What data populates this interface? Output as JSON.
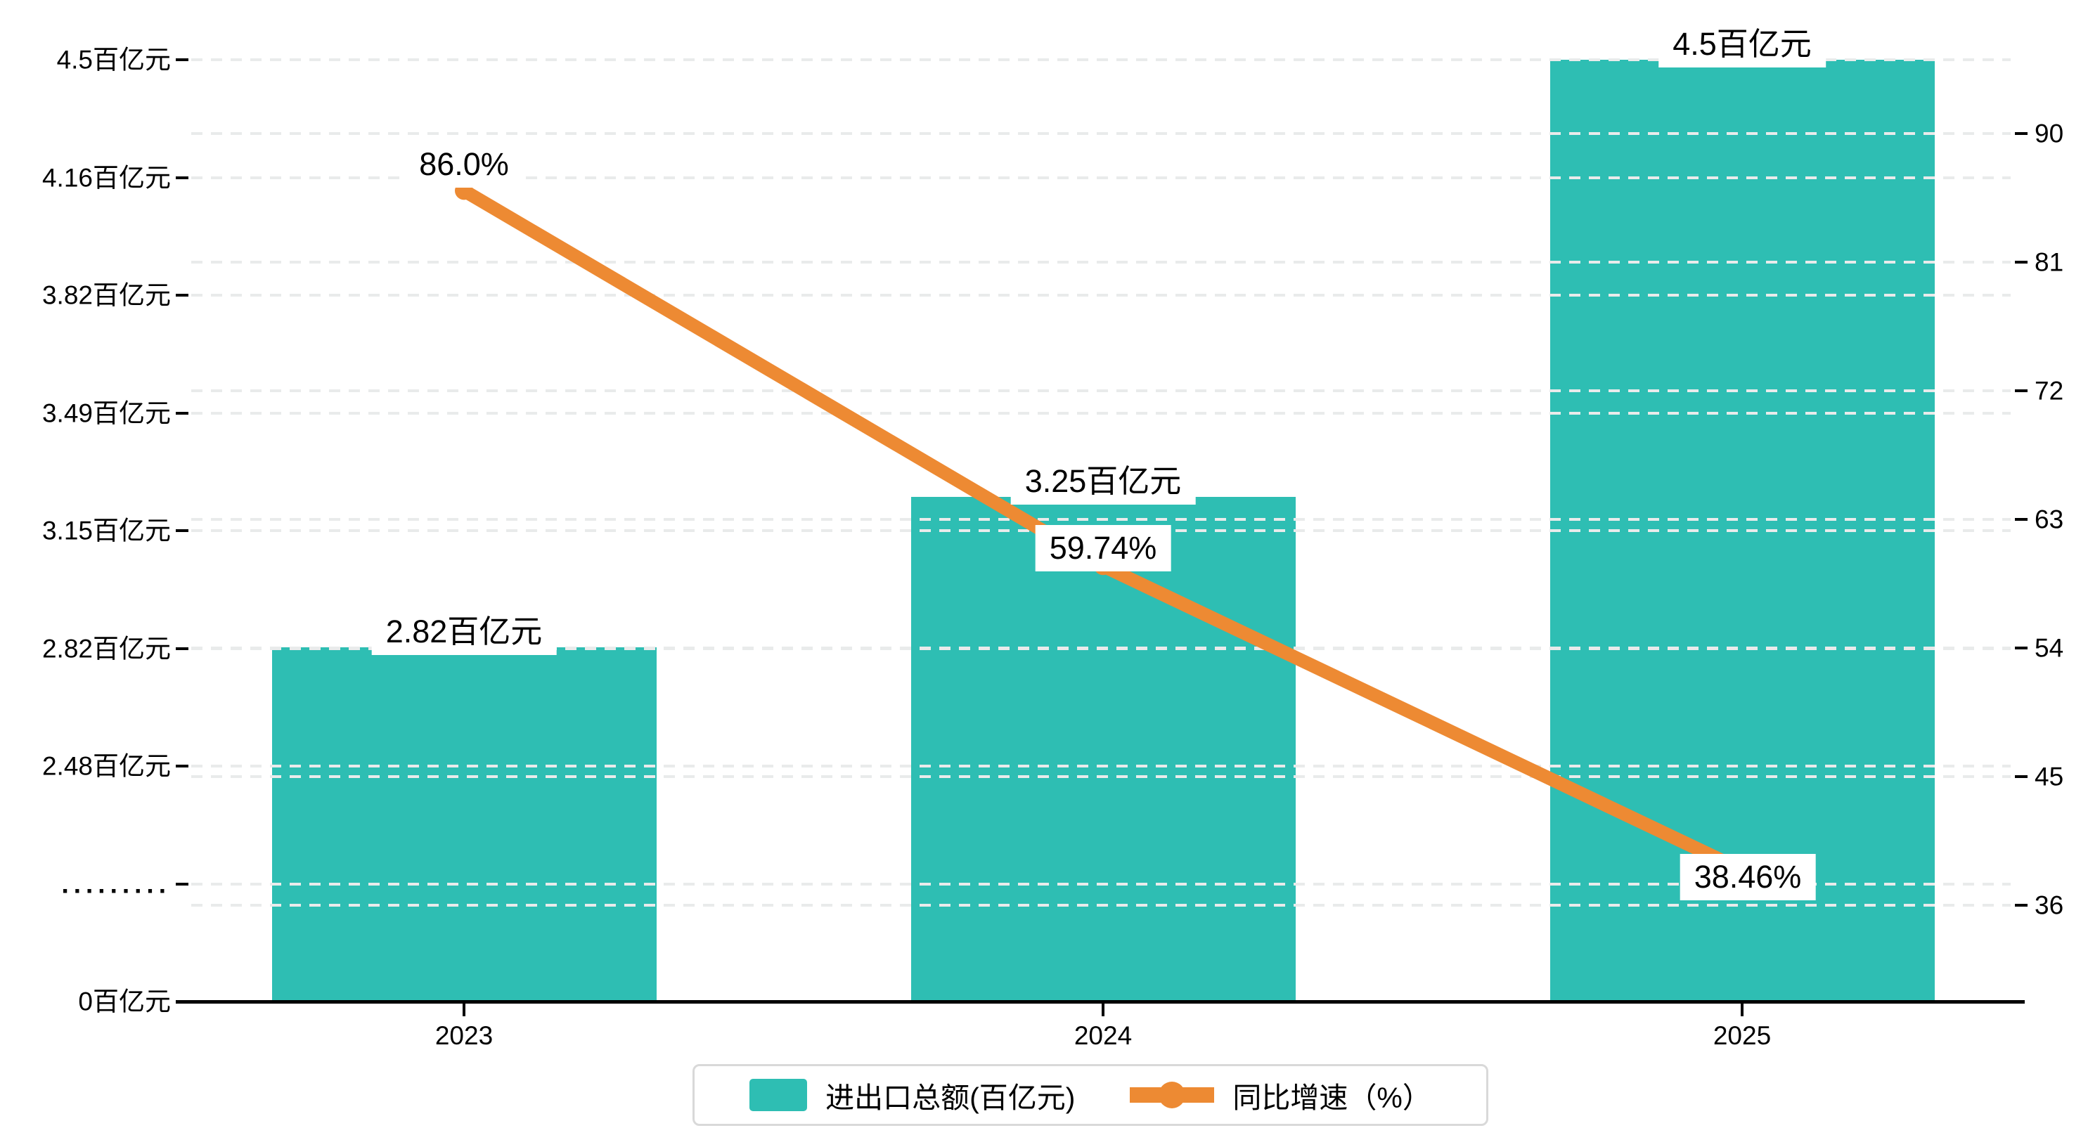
{
  "chart_data": {
    "type": "combo",
    "categories": [
      "2023",
      "2024",
      "2025"
    ],
    "series": [
      {
        "name": "进出口总额(百亿元)",
        "type": "bar",
        "axis": "left",
        "unit": "百亿元",
        "values": [
          2.82,
          3.25,
          4.5
        ],
        "labels": [
          "2.82百亿元",
          "3.25百亿元",
          "4.5百亿元"
        ],
        "color": "#2ebeb3"
      },
      {
        "name": "同比增速（%）",
        "type": "line",
        "axis": "right",
        "unit": "%",
        "values": [
          86.0,
          59.74,
          38.46
        ],
        "labels": [
          "86.0%",
          "59.74%",
          "38.46%"
        ],
        "color": "#ed8a33"
      }
    ],
    "left_axis": {
      "tick_labels": [
        "4.5百亿元",
        "4.16百亿元",
        "3.82百亿元",
        "3.49百亿元",
        "3.15百亿元",
        "2.82百亿元",
        "2.48百亿元",
        ".........",
        "0百亿元"
      ],
      "tick_values": [
        4.5,
        4.16,
        3.82,
        3.49,
        3.15,
        2.82,
        2.48,
        null,
        0
      ],
      "broken_axis": true
    },
    "right_axis": {
      "tick_labels": [
        "90",
        "81",
        "72",
        "63",
        "54",
        "45",
        "36"
      ],
      "tick_values": [
        90,
        81,
        72,
        63,
        54,
        45,
        36
      ]
    },
    "grid": true,
    "legend_position": "bottom"
  },
  "legend": {
    "items": [
      {
        "label": "进出口总额(百亿元)",
        "marker": "bar-swatch"
      },
      {
        "label": "同比增速（%）",
        "marker": "line-dot"
      }
    ]
  },
  "colors": {
    "bar": "#2ebeb3",
    "line": "#ed8a33",
    "grid": "#e9ebeb",
    "axis": "#000000",
    "label_bg": "#ffffff"
  }
}
